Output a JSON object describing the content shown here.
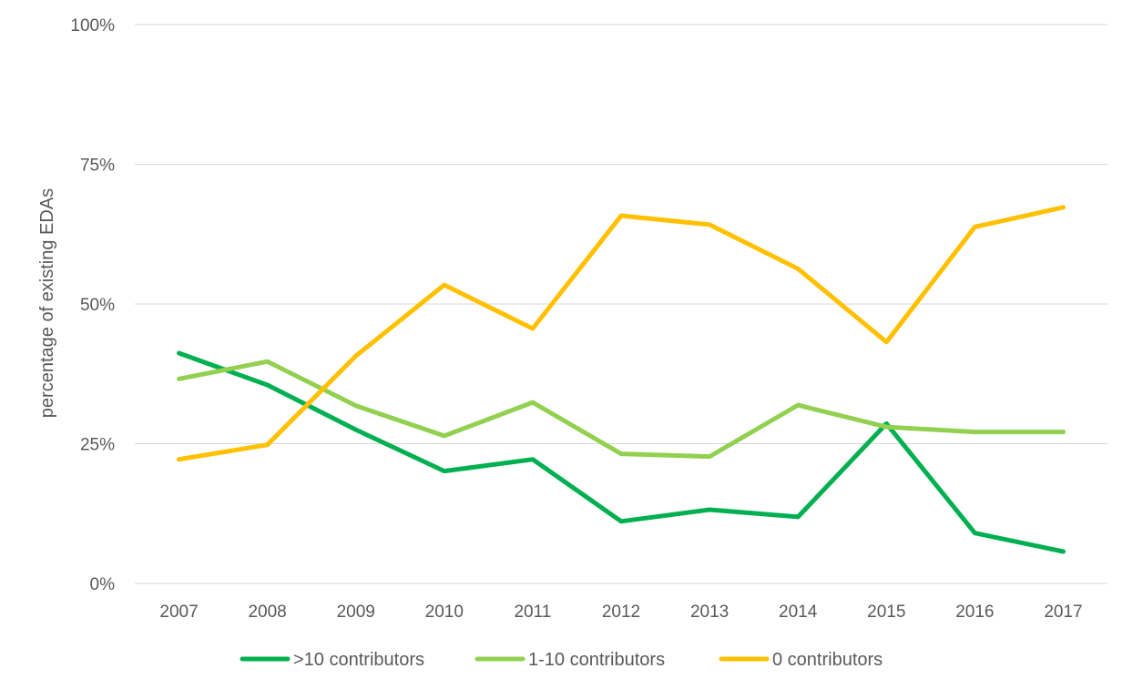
{
  "chart_data": {
    "type": "line",
    "title": "",
    "xlabel": "",
    "ylabel": "percentage of existing EDAs",
    "x": [
      "2007",
      "2008",
      "2009",
      "2010",
      "2011",
      "2012",
      "2013",
      "2014",
      "2015",
      "2016",
      "2017"
    ],
    "ylim": [
      0,
      100
    ],
    "yticks": [
      0,
      25,
      50,
      75,
      100
    ],
    "ytick_labels": [
      "0%",
      "25%",
      "50%",
      "75%",
      "100%"
    ],
    "grid": "horizontal",
    "legend_position": "bottom",
    "series": [
      {
        "name": ">10 contributors",
        "color": "#00b050",
        "values": [
          41.2,
          35.5,
          27.5,
          20.1,
          22.2,
          11.1,
          13.2,
          11.9,
          28.6,
          9.0,
          5.7
        ]
      },
      {
        "name": "1-10 contributors",
        "color": "#92d050",
        "values": [
          36.6,
          39.7,
          31.8,
          26.4,
          32.4,
          23.2,
          22.7,
          31.9,
          28.0,
          27.1,
          27.1
        ]
      },
      {
        "name": "0 contributors",
        "color": "#ffc000",
        "values": [
          22.2,
          24.8,
          40.7,
          53.4,
          45.6,
          65.8,
          64.2,
          56.3,
          43.2,
          63.8,
          67.3
        ]
      }
    ]
  }
}
